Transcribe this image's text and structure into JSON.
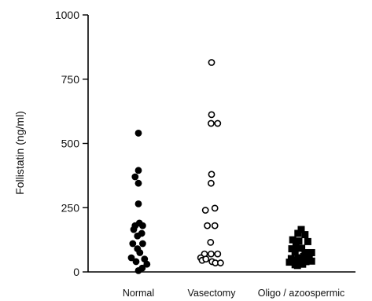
{
  "chart_data": {
    "type": "scatter",
    "title": "",
    "xlabel": "",
    "ylabel": "Follistatin (ng/ml)",
    "ylim": [
      0,
      1000
    ],
    "yticks": [
      {
        "value": 0,
        "label": "0"
      },
      {
        "value": 250,
        "label": "250"
      },
      {
        "value": 500,
        "label": "500"
      },
      {
        "value": 750,
        "label": "750"
      },
      {
        "value": 1000,
        "label": "1000"
      }
    ],
    "categories": [
      "Normal",
      "Vasectomy",
      "Oligo / azoospermic"
    ],
    "grid": false,
    "legend": "none",
    "series": [
      {
        "category": "Normal",
        "marker": "filled-circle",
        "color": "#000000",
        "points": [
          {
            "jitter": 0,
            "y": 540
          },
          {
            "jitter": 0,
            "y": 395
          },
          {
            "jitter": -0.7,
            "y": 370
          },
          {
            "jitter": 0,
            "y": 345
          },
          {
            "jitter": 0,
            "y": 265
          },
          {
            "jitter": -0.7,
            "y": 180
          },
          {
            "jitter": 0.2,
            "y": 190
          },
          {
            "jitter": 0.9,
            "y": 180
          },
          {
            "jitter": -1,
            "y": 165
          },
          {
            "jitter": 0.7,
            "y": 150
          },
          {
            "jitter": -0.2,
            "y": 140
          },
          {
            "jitter": -1.2,
            "y": 110
          },
          {
            "jitter": 0.9,
            "y": 110
          },
          {
            "jitter": -0.2,
            "y": 90
          },
          {
            "jitter": 0.3,
            "y": 75
          },
          {
            "jitter": -1.5,
            "y": 55
          },
          {
            "jitter": 1.3,
            "y": 50
          },
          {
            "jitter": -0.5,
            "y": 40
          },
          {
            "jitter": 1.8,
            "y": 30
          },
          {
            "jitter": 0.8,
            "y": 15
          },
          {
            "jitter": 0,
            "y": 5
          }
        ]
      },
      {
        "category": "Vasectomy",
        "marker": "open-circle",
        "color": "#000000",
        "points": [
          {
            "jitter": 0,
            "y": 815
          },
          {
            "jitter": 0,
            "y": 612
          },
          {
            "jitter": -0.1,
            "y": 578
          },
          {
            "jitter": 1.3,
            "y": 578
          },
          {
            "jitter": 0,
            "y": 380
          },
          {
            "jitter": -0.1,
            "y": 345
          },
          {
            "jitter": -1.3,
            "y": 240
          },
          {
            "jitter": 0.7,
            "y": 248
          },
          {
            "jitter": -0.9,
            "y": 180
          },
          {
            "jitter": 0.7,
            "y": 180
          },
          {
            "jitter": -0.2,
            "y": 115
          },
          {
            "jitter": -1.5,
            "y": 70
          },
          {
            "jitter": -0.1,
            "y": 70
          },
          {
            "jitter": 1.3,
            "y": 70
          },
          {
            "jitter": -2.3,
            "y": 55
          },
          {
            "jitter": -2,
            "y": 45
          },
          {
            "jitter": -1.2,
            "y": 50
          },
          {
            "jitter": 0.1,
            "y": 40
          },
          {
            "jitter": 0.8,
            "y": 35
          },
          {
            "jitter": 1.9,
            "y": 35
          }
        ]
      },
      {
        "category": "Oligo / azoospermic",
        "marker": "filled-square",
        "color": "#000000",
        "points": [
          {
            "jitter": 0,
            "y": 165
          },
          {
            "jitter": -0.7,
            "y": 150
          },
          {
            "jitter": 0.8,
            "y": 145
          },
          {
            "jitter": -1.8,
            "y": 125
          },
          {
            "jitter": -0.5,
            "y": 120
          },
          {
            "jitter": 1.4,
            "y": 118
          },
          {
            "jitter": -1.1,
            "y": 100
          },
          {
            "jitter": -2,
            "y": 90
          },
          {
            "jitter": 0.1,
            "y": 92
          },
          {
            "jitter": 2.2,
            "y": 75
          },
          {
            "jitter": -1.3,
            "y": 78
          },
          {
            "jitter": 0.8,
            "y": 75
          },
          {
            "jitter": 1.7,
            "y": 65
          },
          {
            "jitter": -2.1,
            "y": 52
          },
          {
            "jitter": -0.6,
            "y": 55
          },
          {
            "jitter": 0.5,
            "y": 60
          },
          {
            "jitter": 1.3,
            "y": 55
          },
          {
            "jitter": -1.7,
            "y": 45
          },
          {
            "jitter": -2.5,
            "y": 38
          },
          {
            "jitter": -0.1,
            "y": 40
          },
          {
            "jitter": 1,
            "y": 40
          },
          {
            "jitter": 2.2,
            "y": 42
          },
          {
            "jitter": -1.3,
            "y": 28
          },
          {
            "jitter": 0.3,
            "y": 30
          },
          {
            "jitter": -0.8,
            "y": 25
          }
        ]
      }
    ]
  }
}
